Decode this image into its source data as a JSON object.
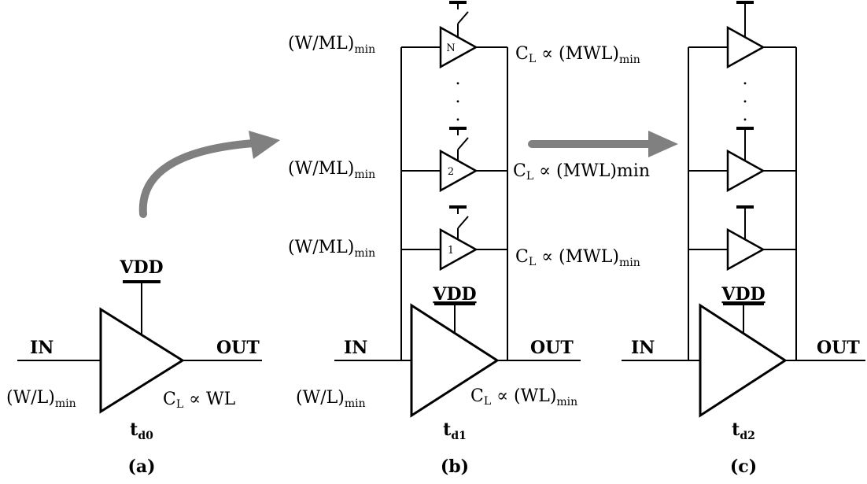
{
  "labels": {
    "in": "IN",
    "out": "OUT",
    "vdd": "VDD",
    "wl_min": "(W/L)",
    "wml_min": "(W/ML)",
    "min_sub": "min",
    "cl_prefix": "C",
    "cl_sub": "L",
    "cl_a": " ∝ WL",
    "cl_b_main": " ∝ (WL)",
    "cl_mwl": " ∝ (MWL)",
    "cl_mwl_inline": " ∝ (MWL)min",
    "td": "t",
    "td0": "d0",
    "td1": "d1",
    "td2": "d2",
    "amp_n": "N",
    "amp_2": "2",
    "amp_1": "1",
    "dot": "."
  },
  "panels": {
    "a": "(a)",
    "b": "(b)",
    "c": "(c)"
  },
  "colors": {
    "arrow": "#808080",
    "wire": "#000000"
  }
}
